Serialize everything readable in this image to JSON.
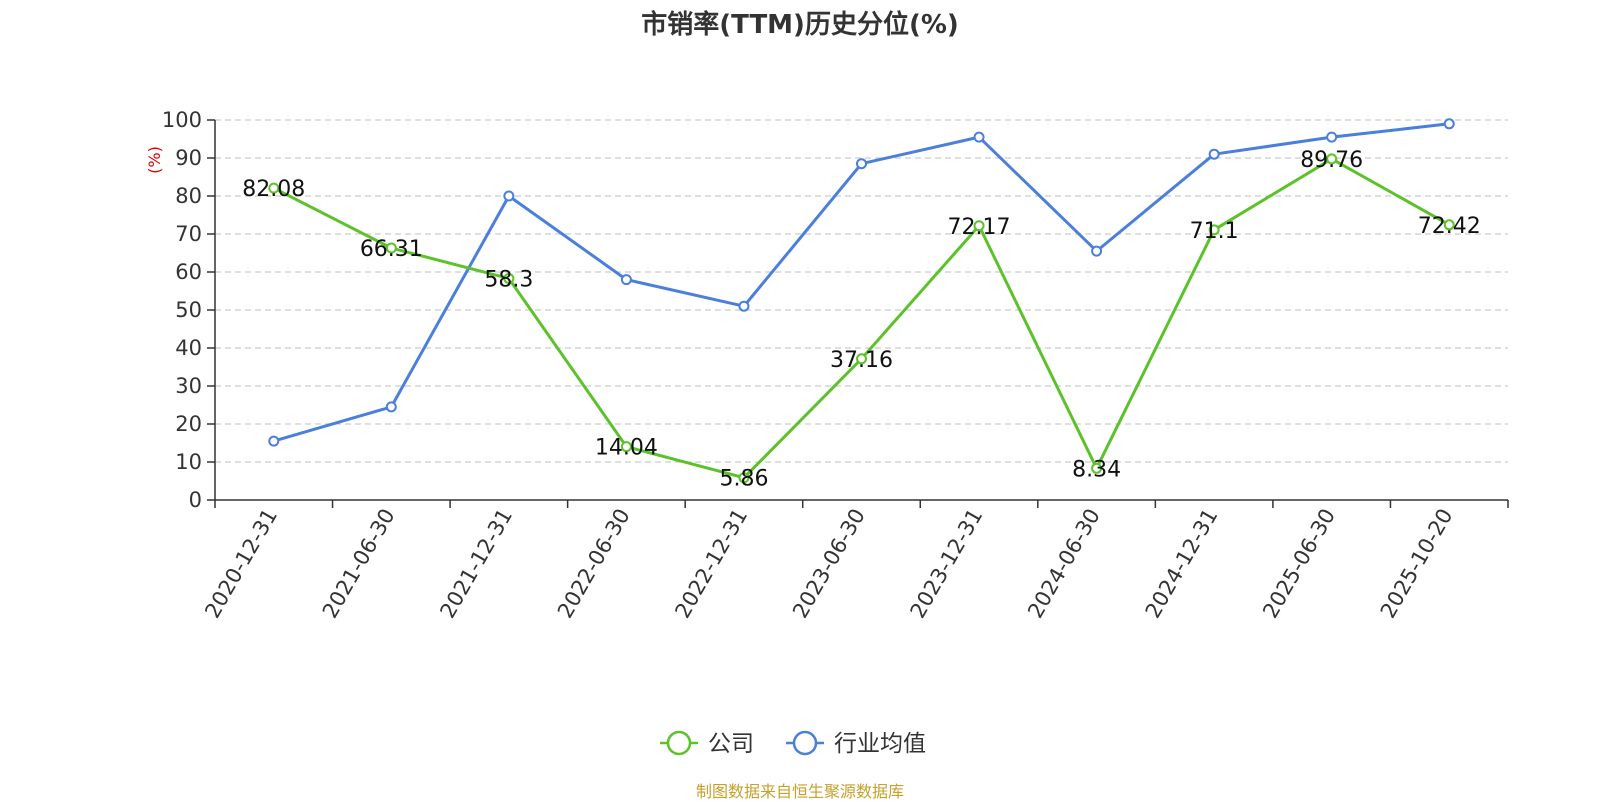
{
  "title": "市销率(TTM)历史分位(%)",
  "source_note": "制图数据来自恒生聚源数据库",
  "colors": {
    "company": "#5cc22a",
    "industry": "#4a7fdc",
    "axis": "#333333",
    "grid": "#cccccc",
    "ylabel": "#e00000",
    "source": "#c8a02c"
  },
  "chart_data": {
    "type": "line",
    "title": "市销率(TTM)历史分位(%)",
    "xlabel": "",
    "ylabel": "(%)",
    "ylim": [
      0,
      100
    ],
    "yticks": [
      0,
      10,
      20,
      30,
      40,
      50,
      60,
      70,
      80,
      90,
      100
    ],
    "grid": true,
    "legend_position": "bottom",
    "categories": [
      "2020-12-31",
      "2021-06-30",
      "2021-12-31",
      "2022-06-30",
      "2022-12-31",
      "2023-06-30",
      "2023-12-31",
      "2024-06-30",
      "2024-12-31",
      "2025-06-30",
      "2025-10-20"
    ],
    "series": [
      {
        "name": "公司",
        "color": "#5cc22a",
        "show_labels": true,
        "labels": [
          "82.08",
          "66.31",
          "58.3",
          "14.04",
          "5.86",
          "37.16",
          "72.17",
          "8.34",
          "71.1",
          "89.76",
          "72.42"
        ],
        "values": [
          82.08,
          66.31,
          58.3,
          14.04,
          5.86,
          37.16,
          72.17,
          8.34,
          71.1,
          89.76,
          72.42
        ]
      },
      {
        "name": "行业均值",
        "color": "#4a7fdc",
        "show_labels": false,
        "values": [
          15.5,
          24.5,
          80,
          58,
          51,
          88.5,
          95.5,
          65.5,
          91,
          95.5,
          99
        ]
      }
    ]
  }
}
